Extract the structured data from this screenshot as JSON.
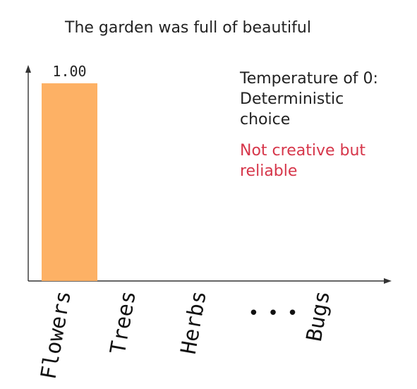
{
  "chart_data": {
    "type": "bar",
    "title": "The garden was full of beautiful",
    "categories": [
      "Flowers",
      "Trees",
      "Herbs",
      "...",
      "Bugs"
    ],
    "values": [
      1.0,
      0.0,
      0.0,
      0.0,
      0.0
    ],
    "value_labels": [
      "1.00",
      "",
      "",
      "",
      ""
    ],
    "ylim": [
      0,
      1.1
    ],
    "xlabel": "",
    "ylabel": "",
    "grid": false,
    "bar_color": "#fdb165"
  },
  "annotation": {
    "lines": [
      "Temperature of 0:",
      "Deterministic",
      "choice"
    ],
    "accent_lines": [
      "Not creative but",
      "reliable"
    ],
    "accent_color": "#d6364a"
  }
}
